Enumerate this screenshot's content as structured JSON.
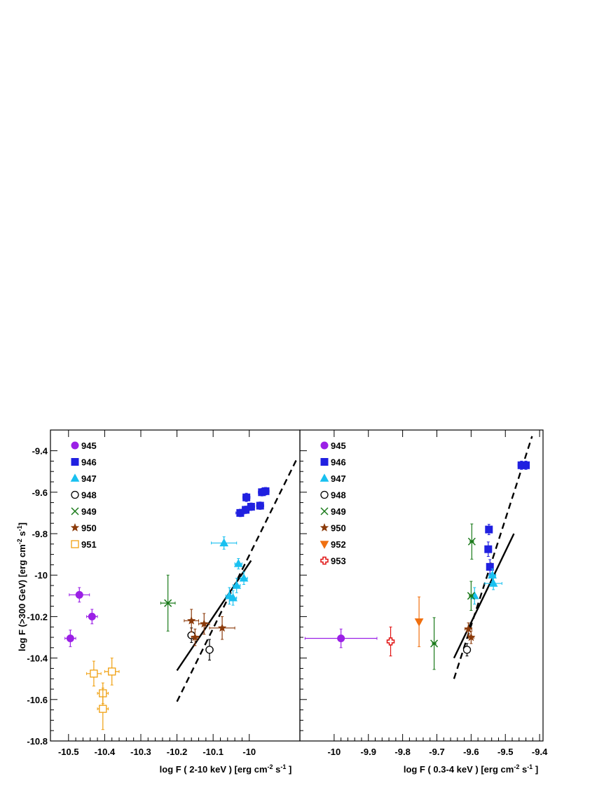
{
  "figure": {
    "ylabel_main": "log F (>300 GeV) [erg cm",
    "ylabel_sup1": "-2",
    "ylabel_mid": " s",
    "ylabel_sup2": "-1",
    "ylabel_end": "]"
  },
  "chart_data": [
    {
      "type": "scatter",
      "xlabel_main": "log F ( 2-10 keV ) [erg cm",
      "xlabel_sup1": "-2",
      "xlabel_mid": " s",
      "xlabel_sup2": "-1",
      "xlabel_end": " ]",
      "xlim": [
        -10.55,
        -9.86
      ],
      "ylim": [
        -10.8,
        -9.3
      ],
      "xticks": [
        -10.5,
        -10.4,
        -10.3,
        -10.2,
        -10.1,
        -10.0
      ],
      "xtick_labels": [
        "-10.5",
        "-10.4",
        "-10.3",
        "-10.2",
        "-10.1",
        "-10"
      ],
      "yticks": [
        -10.8,
        -10.6,
        -10.4,
        -10.2,
        -10.0,
        -9.8,
        -9.6,
        -9.4
      ],
      "ytick_labels": [
        "-10.8",
        "-10.6",
        "-10.4",
        "-10.2",
        "-10",
        "-9.8",
        "-9.6",
        "-9.4"
      ],
      "legend_position": "top-left",
      "series": [
        {
          "name": "945",
          "marker": "circle",
          "color": "#9b20e6",
          "points": [
            [
              -10.47,
              -10.095,
              0.028,
              0.035
            ],
            [
              -10.435,
              -10.2,
              0.015,
              0.035
            ],
            [
              -10.495,
              -10.305,
              0.015,
              0.04
            ]
          ]
        },
        {
          "name": "946",
          "marker": "square",
          "color": "#2020e0",
          "points": [
            [
              -10.025,
              -9.7,
              0.012,
              0.018
            ],
            [
              -10.01,
              -9.685,
              0.01,
              0.018
            ],
            [
              -10.008,
              -9.625,
              0.01,
              0.02
            ],
            [
              -9.995,
              -9.67,
              0.01,
              0.018
            ],
            [
              -9.97,
              -9.665,
              0.01,
              0.018
            ],
            [
              -9.965,
              -9.6,
              0.01,
              0.018
            ],
            [
              -9.955,
              -9.595,
              0.01,
              0.018
            ]
          ]
        },
        {
          "name": "947",
          "marker": "triangle-up",
          "color": "#19c0f0",
          "points": [
            [
              -10.07,
              -9.845,
              0.035,
              0.03
            ],
            [
              -10.03,
              -9.945,
              0.01,
              0.025
            ],
            [
              -10.015,
              -10.015,
              0.01,
              0.03
            ],
            [
              -10.055,
              -10.1,
              0.01,
              0.04
            ],
            [
              -10.045,
              -10.11,
              0.01,
              0.035
            ],
            [
              -10.035,
              -10.05,
              0.01,
              0.035
            ]
          ]
        },
        {
          "name": "948",
          "marker": "circle-open",
          "color": "#000000",
          "points": [
            [
              -10.16,
              -10.29,
              0.01,
              0.035
            ],
            [
              -10.11,
              -10.36,
              0.01,
              0.05
            ]
          ]
        },
        {
          "name": "949",
          "marker": "x",
          "color": "#1a7a1a",
          "points": [
            [
              -10.225,
              -10.135,
              0.02,
              0.135
            ]
          ]
        },
        {
          "name": "950",
          "marker": "star",
          "color": "#8b3a0a",
          "points": [
            [
              -10.16,
              -10.22,
              0.02,
              0.055
            ],
            [
              -10.15,
              -10.3,
              0.01,
              0.04
            ],
            [
              -10.125,
              -10.235,
              0.015,
              0.05
            ],
            [
              -10.075,
              -10.255,
              0.035,
              0.055
            ]
          ]
        },
        {
          "name": "951",
          "marker": "square-open",
          "color": "#f0a010",
          "points": [
            [
              -10.43,
              -10.475,
              0.02,
              0.06
            ],
            [
              -10.38,
              -10.465,
              0.02,
              0.065
            ],
            [
              -10.405,
              -10.57,
              0.015,
              0.05
            ],
            [
              -10.405,
              -10.645,
              0.015,
              0.1
            ]
          ]
        }
      ],
      "lines": [
        {
          "style": "solid",
          "x": [
            -10.2,
            -9.995
          ],
          "y": [
            -10.46,
            -9.93
          ]
        },
        {
          "style": "dashed",
          "x": [
            -10.2,
            -9.87
          ],
          "y": [
            -10.61,
            -9.445
          ]
        }
      ]
    },
    {
      "type": "scatter",
      "xlabel_main": "log F ( 0.3-4 keV ) [erg cm",
      "xlabel_sup1": "-2",
      "xlabel_mid": " s",
      "xlabel_sup2": "-1",
      "xlabel_end": " ]",
      "xlim": [
        -10.1,
        -9.39
      ],
      "ylim": [
        -10.8,
        -9.3
      ],
      "xticks": [
        -10.0,
        -9.9,
        -9.8,
        -9.7,
        -9.6,
        -9.5,
        -9.4
      ],
      "xtick_labels": [
        "-10",
        "-9.9",
        "-9.8",
        "-9.7",
        "-9.6",
        "-9.5",
        "-9.4"
      ],
      "yticks": [
        -10.8,
        -10.6,
        -10.4,
        -10.2,
        -10.0,
        -9.8,
        -9.6,
        -9.4
      ],
      "legend_position": "top-left",
      "series": [
        {
          "name": "945",
          "marker": "circle",
          "color": "#9b20e6",
          "points": [
            [
              -9.98,
              -10.305,
              0.105,
              0.045
            ]
          ]
        },
        {
          "name": "946",
          "marker": "square",
          "color": "#2020e0",
          "points": [
            [
              -9.548,
              -9.78,
              0.005,
              0.025
            ],
            [
              -9.55,
              -9.875,
              0.005,
              0.035
            ],
            [
              -9.545,
              -9.96,
              0.005,
              0.035
            ],
            [
              -9.453,
              -9.47,
              0.01,
              0.02
            ],
            [
              -9.44,
              -9.47,
              0.01,
              0.02
            ]
          ]
        },
        {
          "name": "947",
          "marker": "triangle-up",
          "color": "#19c0f0",
          "points": [
            [
              -9.535,
              -10.04,
              0.025,
              0.03
            ],
            [
              -9.538,
              -10.0,
              0.01,
              0.03
            ],
            [
              -9.59,
              -10.1,
              0.005,
              0.04
            ]
          ]
        },
        {
          "name": "948",
          "marker": "circle-open",
          "color": "#000000",
          "points": [
            [
              -9.612,
              -10.36,
              0.005,
              0.03
            ]
          ]
        },
        {
          "name": "949",
          "marker": "x",
          "color": "#1a7a1a",
          "points": [
            [
              -9.598,
              -9.838,
              0.005,
              0.085
            ],
            [
              -9.6,
              -10.1,
              0.005,
              0.07
            ],
            [
              -9.708,
              -10.33,
              0.005,
              0.125
            ]
          ]
        },
        {
          "name": "950",
          "marker": "star",
          "color": "#8b3a0a",
          "points": [
            [
              -9.608,
              -10.26,
              0.01,
              0.03
            ],
            [
              -9.6,
              -10.3,
              0.008,
              0.03
            ]
          ]
        },
        {
          "name": "952",
          "marker": "triangle-down",
          "color": "#f07010",
          "points": [
            [
              -9.752,
              -10.225,
              0.005,
              0.12
            ]
          ]
        },
        {
          "name": "953",
          "marker": "cross-open",
          "color": "#e01010",
          "points": [
            [
              -9.835,
              -10.32,
              0.01,
              0.07
            ]
          ]
        }
      ],
      "lines": [
        {
          "style": "solid",
          "x": [
            -9.65,
            -9.475
          ],
          "y": [
            -10.4,
            -9.8
          ]
        },
        {
          "style": "dashed",
          "x": [
            -9.65,
            -9.422
          ],
          "y": [
            -10.5,
            -9.33
          ]
        }
      ]
    }
  ]
}
